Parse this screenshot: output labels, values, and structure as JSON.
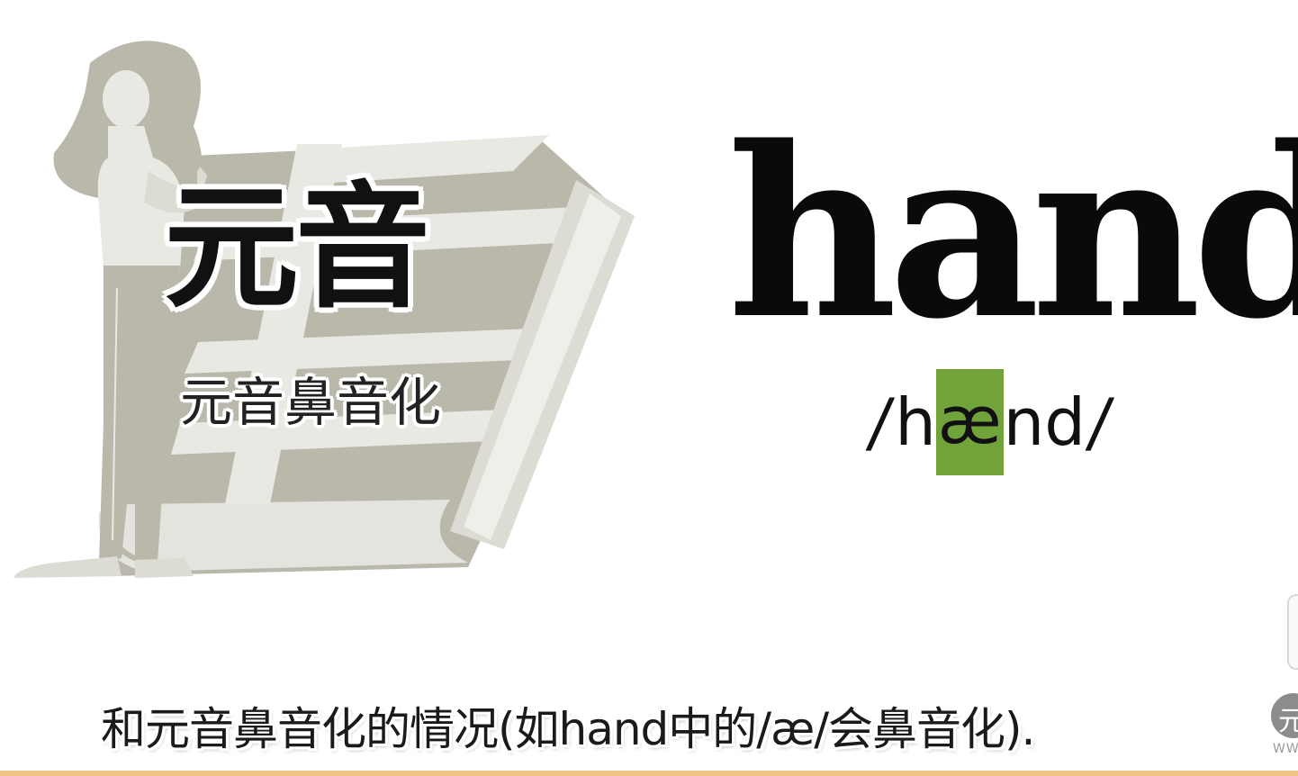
{
  "lesson": {
    "topic_title": "元音",
    "topic_subtitle": "元音鼻音化"
  },
  "word_card": {
    "word": "hand",
    "ipa_open_slash": "/",
    "ipa_before": "h",
    "ipa_highlight": "æ",
    "ipa_after": "nd",
    "ipa_close_slash": "/",
    "highlight_color": "#72a33b"
  },
  "subtitle": {
    "text": "和元音鼻音化的情况(如hand中的/æ/会鼻音化)."
  },
  "watermark": {
    "glyph": "元",
    "url_fragment": "WW"
  },
  "colors": {
    "illustration_gray": "#b9b8ab",
    "illustration_light": "#e9e9e4",
    "progress_bar": "#f2c585"
  }
}
